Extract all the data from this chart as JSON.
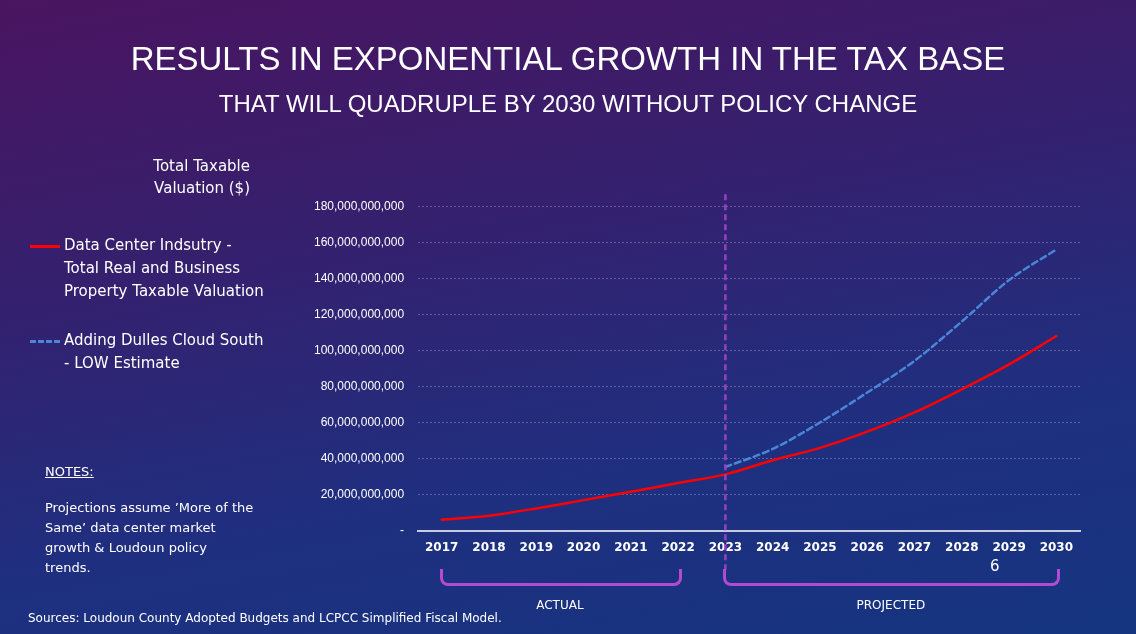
{
  "chart_data": {
    "type": "line",
    "title": "RESULTS IN EXPONENTIAL GROWTH IN THE TAX BASE",
    "subtitle": "THAT WILL QUADRUPLE BY 2030 WITHOUT POLICY CHANGE",
    "ylabel": "Total Taxable Valuation ($)",
    "categories": [
      "2017",
      "2018",
      "2019",
      "2020",
      "2021",
      "2022",
      "2023",
      "2024",
      "2025",
      "2026",
      "2027",
      "2028",
      "2029",
      "2030"
    ],
    "series": [
      {
        "name": "Data Center Indsutry - Total Real and Business Property Taxable Valuation",
        "color": "#ff0000",
        "line_style": "solid",
        "values": [
          6000000000,
          8300000000,
          12300000000,
          16900000000,
          21500000000,
          26400000000,
          31200000000,
          39000000000,
          45900000000,
          54900000000,
          65600000000,
          78400000000,
          92200000000,
          108000000000
        ]
      },
      {
        "name": "Adding Dulles Cloud South - LOW Estimate",
        "color": "#4a86d8",
        "line_style": "dashed",
        "values": [
          null,
          null,
          null,
          null,
          null,
          null,
          35300000000,
          45300000000,
          60000000000,
          76600000000,
          94200000000,
          116000000000,
          139000000000,
          156000000000
        ]
      }
    ],
    "ylim": [
      0,
      180000000000
    ],
    "yticks": [
      {
        "value": 0,
        "label": "-"
      },
      {
        "value": 20000000000,
        "label": "20,000,000,000"
      },
      {
        "value": 40000000000,
        "label": "40,000,000,000"
      },
      {
        "value": 60000000000,
        "label": "60,000,000,000"
      },
      {
        "value": 80000000000,
        "label": "80,000,000,000"
      },
      {
        "value": 100000000000,
        "label": "100,000,000,000"
      },
      {
        "value": 120000000000,
        "label": "120,000,000,000"
      },
      {
        "value": 140000000000,
        "label": "140,000,000,000"
      },
      {
        "value": 160000000000,
        "label": "160,000,000,000"
      },
      {
        "value": 180000000000,
        "label": "180,000,000,000"
      }
    ],
    "ref_lines": [
      {
        "axis": "x",
        "value": "2023",
        "color": "#9b3fc0",
        "line_style": "dashed"
      }
    ],
    "grid": "y",
    "legend": "left",
    "marker": "none",
    "annotations": [
      "NOTES:",
      "Projections assume ’More of the Same’ data center market growth & Loudoun policy trends.",
      "Sources: Loudoun County Adopted Budgets and LCPCC Simplified Fiscal Model.",
      "ACTUAL",
      "PROJECTED",
      "6"
    ]
  }
}
